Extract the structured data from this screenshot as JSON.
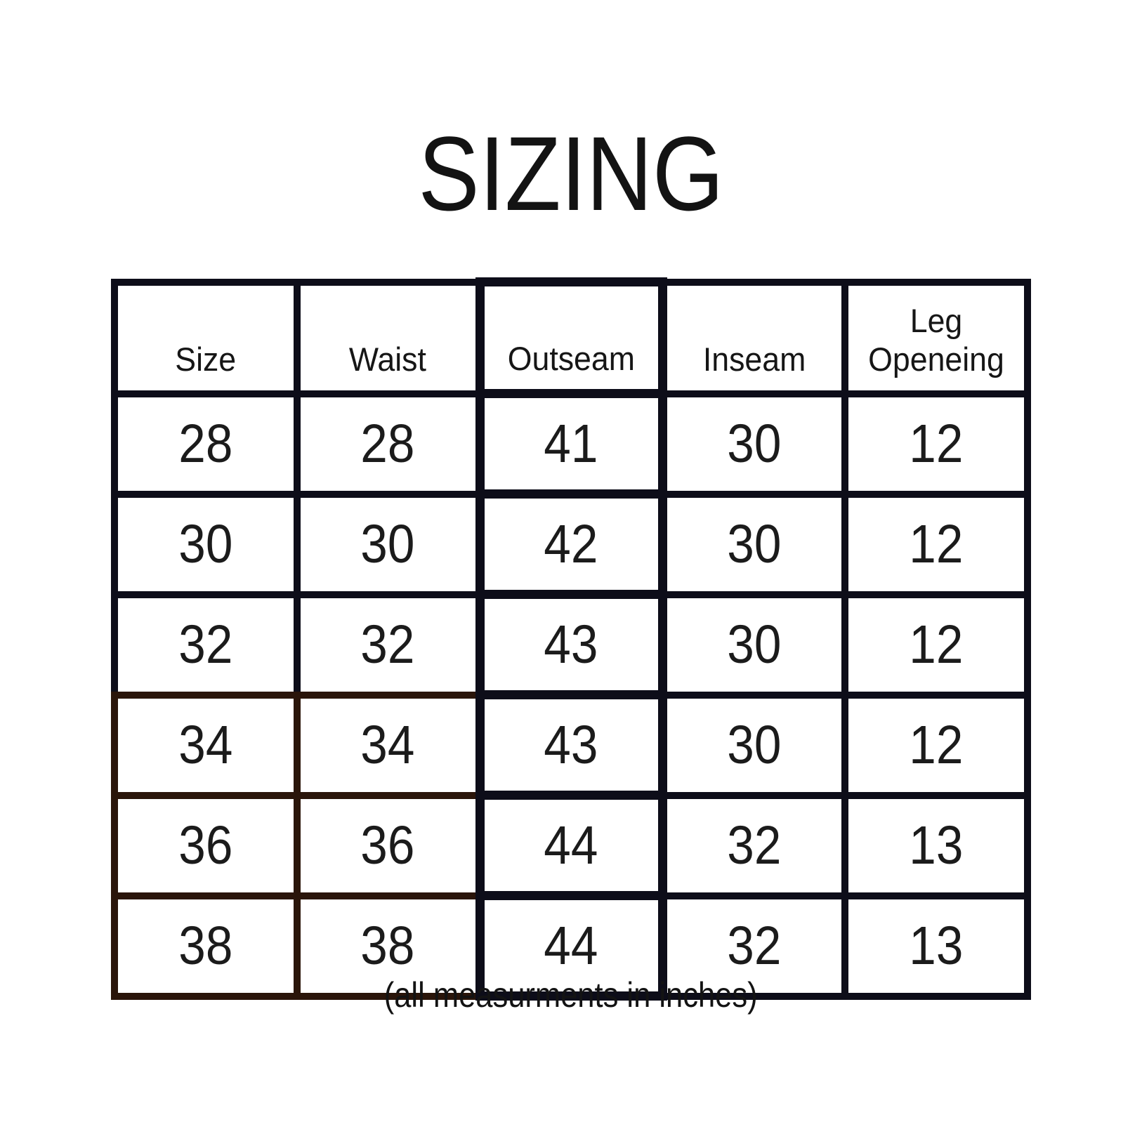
{
  "title": "SIZING",
  "footer_note": "(all measurments in inches)",
  "colors": {
    "background": "#ffffff",
    "grid_black": "#0d0d19",
    "grid_brown": "#2a150a",
    "text": "#141414"
  },
  "table": {
    "headers": [
      "Size",
      "Waist",
      "Outseam",
      "Inseam",
      "Leg Openeing"
    ],
    "rows": [
      [
        "28",
        "28",
        "41",
        "30",
        "12"
      ],
      [
        "30",
        "30",
        "42",
        "30",
        "12"
      ],
      [
        "32",
        "32",
        "43",
        "30",
        "12"
      ],
      [
        "34",
        "34",
        "43",
        "30",
        "12"
      ],
      [
        "36",
        "36",
        "44",
        "32",
        "13"
      ],
      [
        "38",
        "38",
        "44",
        "32",
        "13"
      ]
    ]
  },
  "chart_data": {
    "type": "table",
    "title": "SIZING",
    "note": "(all measurments in inches)",
    "units": "inches",
    "columns": [
      "Size",
      "Waist",
      "Outseam",
      "Inseam",
      "Leg Openeing"
    ],
    "rows": [
      [
        28,
        28,
        41,
        30,
        12
      ],
      [
        30,
        30,
        42,
        30,
        12
      ],
      [
        32,
        32,
        43,
        30,
        12
      ],
      [
        34,
        34,
        43,
        30,
        12
      ],
      [
        36,
        36,
        44,
        32,
        13
      ],
      [
        38,
        38,
        44,
        32,
        13
      ]
    ],
    "layout_hints": {
      "grid": "heavy black borders, bottom-left region drawn in dark brown",
      "header_align": "bottom",
      "cell_align": "center"
    }
  }
}
